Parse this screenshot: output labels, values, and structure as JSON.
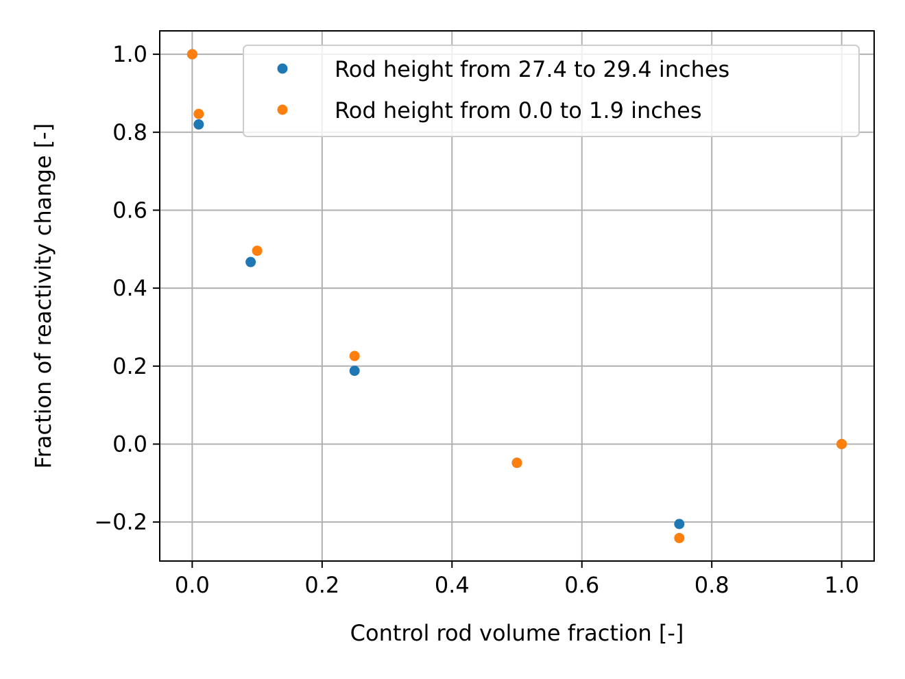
{
  "chart_data": {
    "type": "scatter",
    "title": "",
    "xlabel": "Control rod volume fraction [-]",
    "ylabel": "Fraction of reactivity change [-]",
    "xlim": [
      -0.05,
      1.05
    ],
    "ylim": [
      -0.3,
      1.06
    ],
    "xticks": [
      0.0,
      0.2,
      0.4,
      0.6,
      0.8,
      1.0
    ],
    "xtick_labels": [
      "0.0",
      "0.2",
      "0.4",
      "0.6",
      "0.8",
      "1.0"
    ],
    "yticks": [
      -0.2,
      0.0,
      0.2,
      0.4,
      0.6,
      0.8,
      1.0
    ],
    "ytick_labels": [
      "−0.2",
      "0.0",
      "0.2",
      "0.4",
      "0.6",
      "0.8",
      "1.0"
    ],
    "grid": true,
    "legend_position": "top-right",
    "series": [
      {
        "name": "Rod height from 27.4 to 29.4 inches",
        "color": "#1f77b4",
        "x": [
          0.0,
          0.01,
          0.09,
          0.25,
          0.5,
          0.75,
          1.0
        ],
        "y": [
          1.0,
          0.82,
          0.467,
          0.188,
          -0.048,
          -0.205,
          0.0
        ]
      },
      {
        "name": "Rod height from 0.0 to 1.9 inches",
        "color": "#ff7f0e",
        "x": [
          0.0,
          0.01,
          0.1,
          0.25,
          0.5,
          0.75,
          1.0
        ],
        "y": [
          1.0,
          0.847,
          0.496,
          0.226,
          -0.048,
          -0.241,
          0.0
        ]
      }
    ]
  }
}
